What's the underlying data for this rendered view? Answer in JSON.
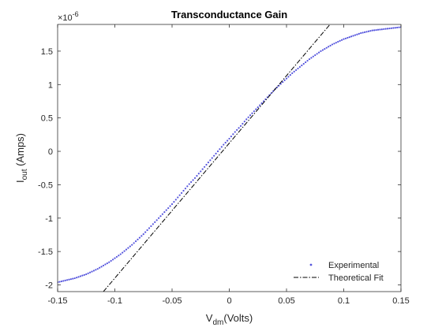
{
  "chart_data": {
    "type": "scatter",
    "title": "Transconductance Gain",
    "xlabel": {
      "main": "V",
      "sub": "dm",
      "rest": "(Volts)"
    },
    "ylabel": {
      "main": "I",
      "sub": "out",
      "rest": " (Amps)"
    },
    "y_exponent": {
      "base": "×10",
      "power": "-6"
    },
    "xlim": [
      -0.15,
      0.15
    ],
    "ylim": [
      -2.1,
      1.9
    ],
    "x_ticks": [
      -0.15,
      -0.1,
      -0.05,
      0,
      0.05,
      0.1,
      0.15
    ],
    "x_tick_labels": [
      "-0.15",
      "-0.1",
      "-0.05",
      "0",
      "0.05",
      "0.1",
      "0.15"
    ],
    "y_ticks": [
      -2,
      -1.5,
      -1,
      -0.5,
      0,
      0.5,
      1,
      1.5
    ],
    "y_tick_labels": [
      "-2",
      "-1.5",
      "-1",
      "-0.5",
      "0",
      "0.5",
      "1",
      "1.5"
    ],
    "grid": false,
    "legend_position": "bottom-right",
    "series": [
      {
        "name": "Experimental",
        "kind": "dotted-markers",
        "color": "#5555dd",
        "points": [
          [
            -0.15,
            -1.96
          ],
          [
            -0.145,
            -1.94
          ],
          [
            -0.14,
            -1.92
          ],
          [
            -0.135,
            -1.9
          ],
          [
            -0.13,
            -1.87
          ],
          [
            -0.125,
            -1.84
          ],
          [
            -0.12,
            -1.8
          ],
          [
            -0.115,
            -1.76
          ],
          [
            -0.11,
            -1.71
          ],
          [
            -0.105,
            -1.66
          ],
          [
            -0.1,
            -1.6
          ],
          [
            -0.095,
            -1.54
          ],
          [
            -0.09,
            -1.47
          ],
          [
            -0.085,
            -1.4
          ],
          [
            -0.08,
            -1.32
          ],
          [
            -0.075,
            -1.24
          ],
          [
            -0.07,
            -1.15
          ],
          [
            -0.065,
            -1.06
          ],
          [
            -0.06,
            -0.97
          ],
          [
            -0.055,
            -0.88
          ],
          [
            -0.05,
            -0.79
          ],
          [
            -0.045,
            -0.69
          ],
          [
            -0.04,
            -0.59
          ],
          [
            -0.035,
            -0.49
          ],
          [
            -0.03,
            -0.4
          ],
          [
            -0.025,
            -0.3
          ],
          [
            -0.02,
            -0.2
          ],
          [
            -0.015,
            -0.1
          ],
          [
            -0.01,
            0.0
          ],
          [
            -0.005,
            0.1
          ],
          [
            0,
            0.19
          ],
          [
            0.005,
            0.29
          ],
          [
            0.01,
            0.38
          ],
          [
            0.015,
            0.48
          ],
          [
            0.02,
            0.57
          ],
          [
            0.025,
            0.66
          ],
          [
            0.03,
            0.75
          ],
          [
            0.035,
            0.84
          ],
          [
            0.04,
            0.93
          ],
          [
            0.045,
            1.01
          ],
          [
            0.05,
            1.09
          ],
          [
            0.055,
            1.17
          ],
          [
            0.06,
            1.24
          ],
          [
            0.065,
            1.31
          ],
          [
            0.07,
            1.38
          ],
          [
            0.075,
            1.44
          ],
          [
            0.08,
            1.5
          ],
          [
            0.085,
            1.55
          ],
          [
            0.09,
            1.6
          ],
          [
            0.095,
            1.64
          ],
          [
            0.1,
            1.68
          ],
          [
            0.105,
            1.71
          ],
          [
            0.11,
            1.74
          ],
          [
            0.115,
            1.77
          ],
          [
            0.12,
            1.79
          ],
          [
            0.125,
            1.81
          ],
          [
            0.13,
            1.82
          ],
          [
            0.135,
            1.83
          ],
          [
            0.14,
            1.84
          ],
          [
            0.145,
            1.85
          ],
          [
            0.15,
            1.86
          ]
        ]
      },
      {
        "name": "Theoretical Fit",
        "kind": "dash-dot-line",
        "color": "#000000",
        "points": [
          [
            -0.11,
            -2.1
          ],
          [
            0.088,
            1.9
          ]
        ]
      }
    ]
  }
}
